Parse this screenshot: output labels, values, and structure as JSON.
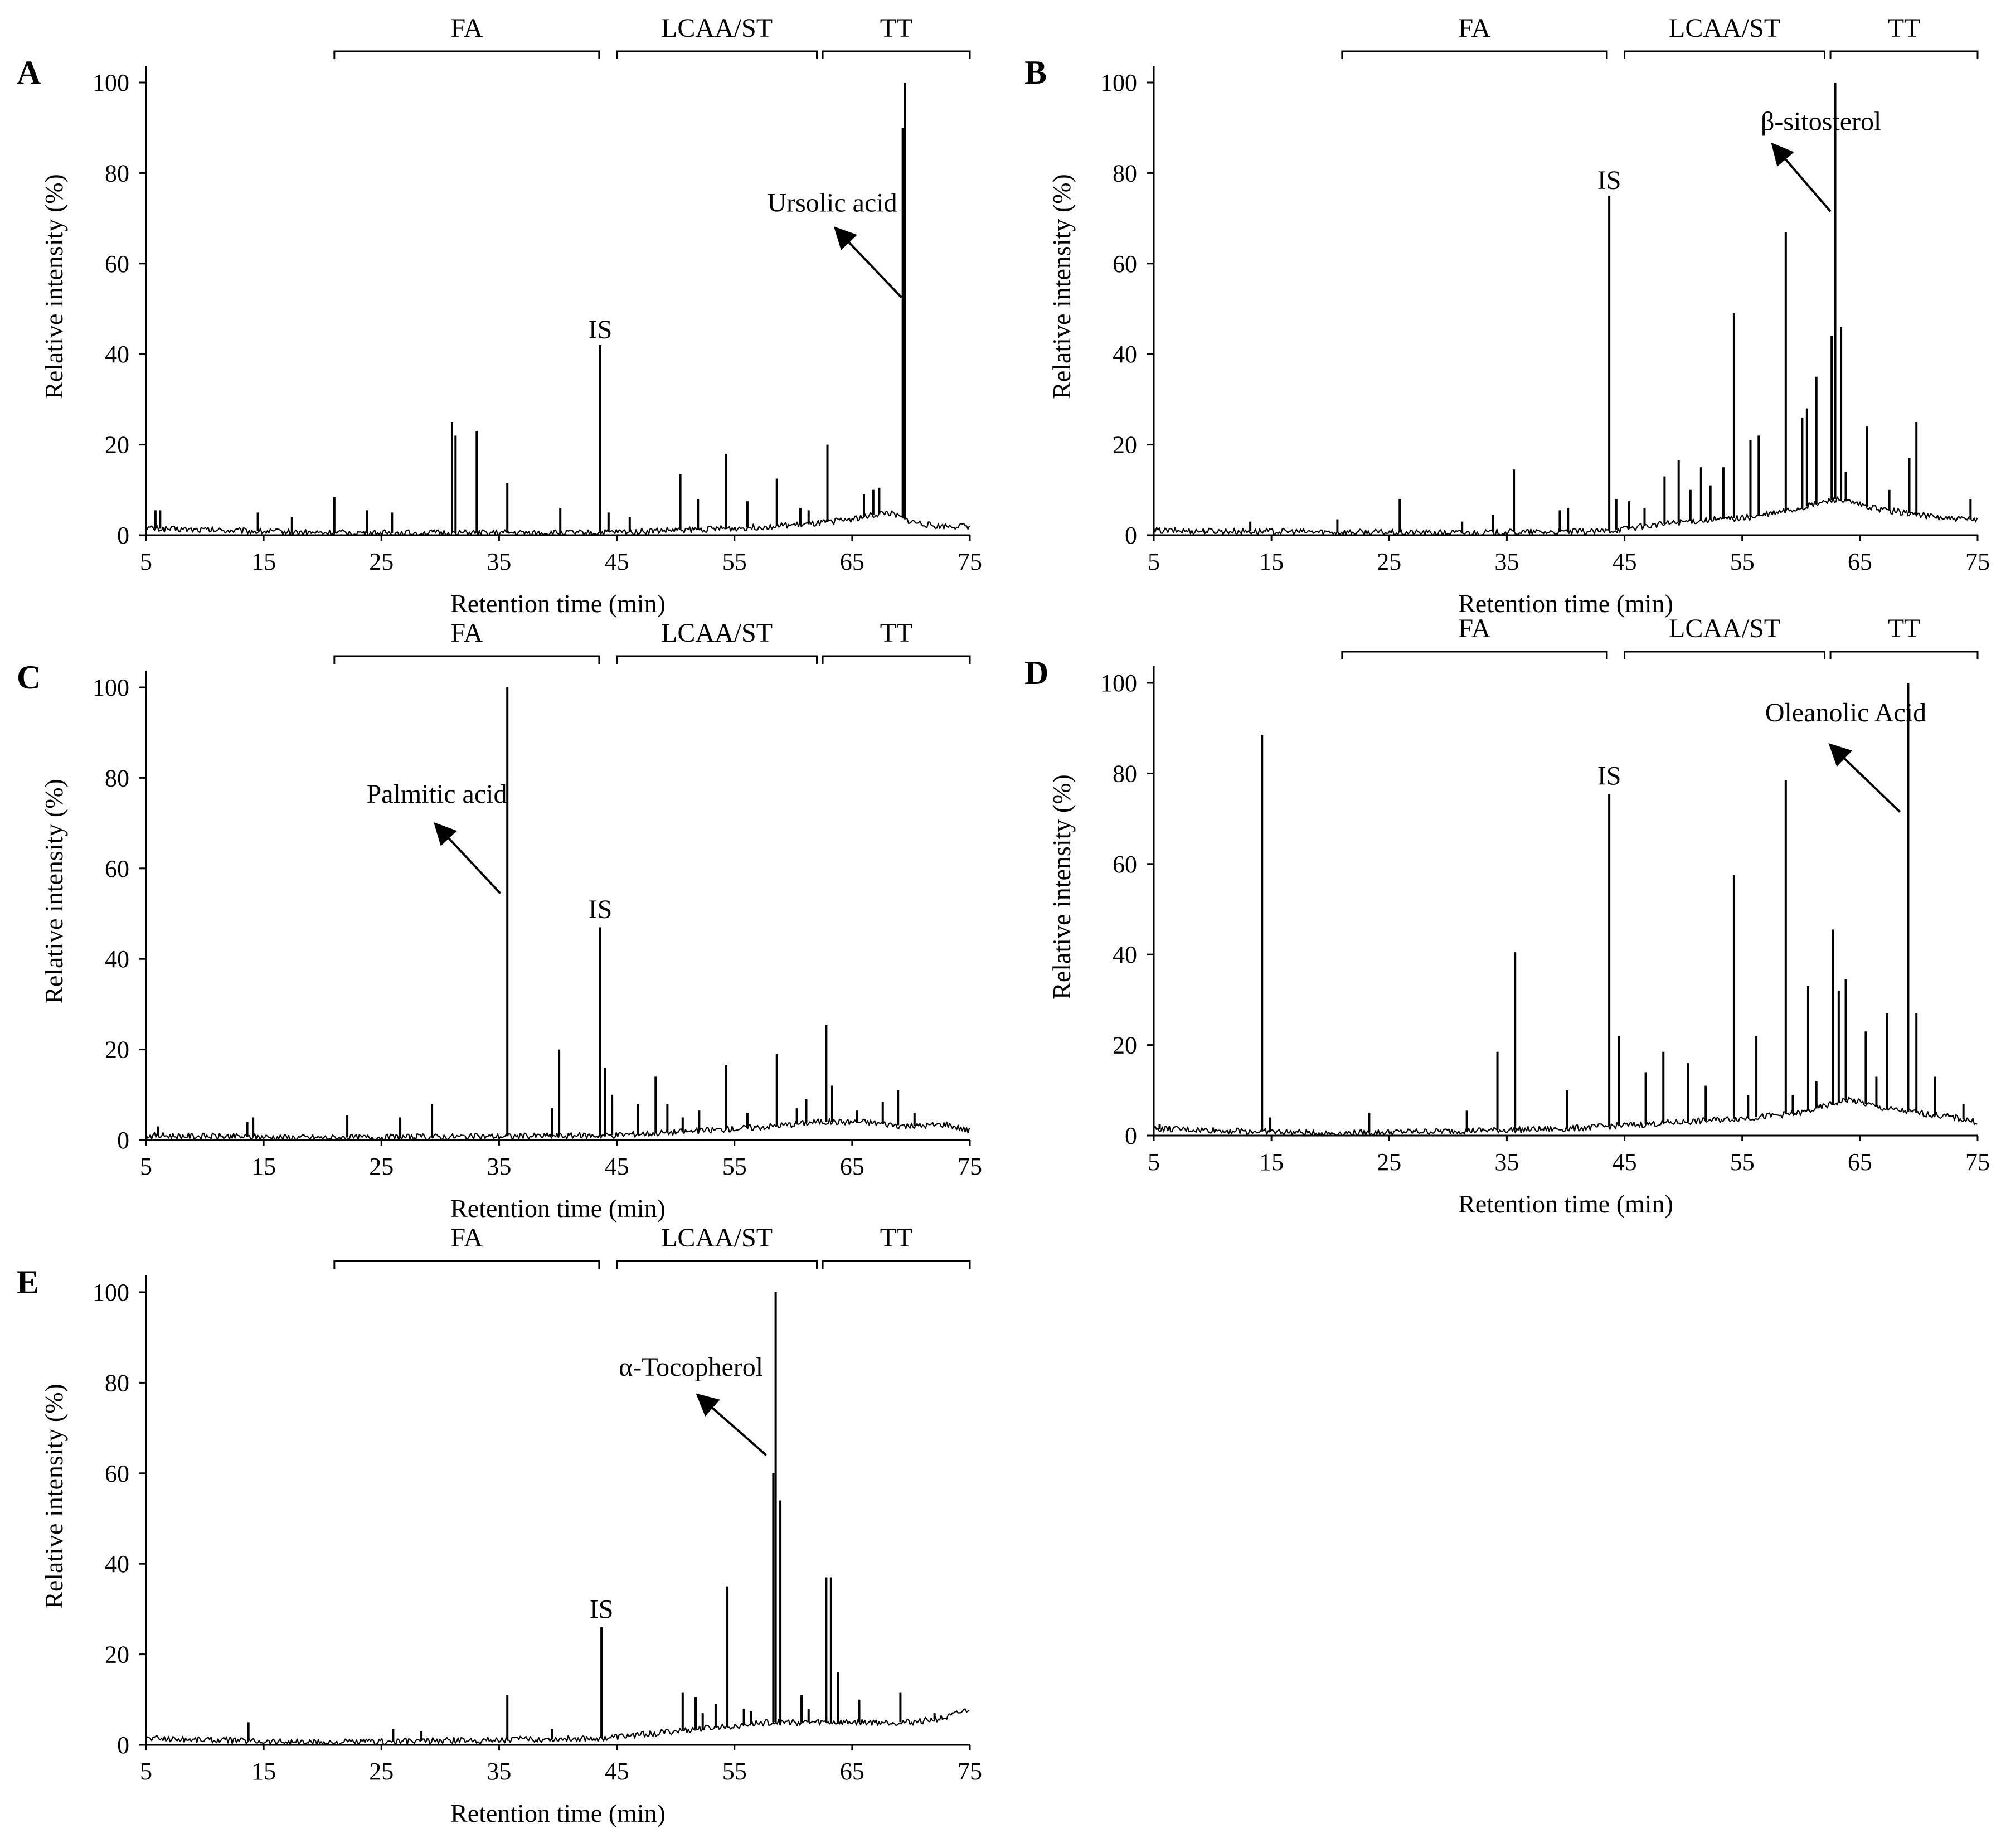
{
  "figure": {
    "x_axis_label": "Retention time (min)",
    "y_axis_label": "Relative intensity (%)"
  },
  "chart_data": [
    {
      "panel": "A",
      "type": "line",
      "xlabel": "Retention time (min)",
      "ylabel": "Relative intensity (%)",
      "xlim": [
        5,
        75
      ],
      "ylim": [
        0,
        100
      ],
      "xticks": [
        5,
        15,
        25,
        35,
        45,
        55,
        65,
        75
      ],
      "yticks": [
        0,
        20,
        40,
        60,
        80,
        100
      ],
      "brackets": [
        {
          "label": "FA",
          "start": 21,
          "end": 43.5
        },
        {
          "label": "LCAA/ST",
          "start": 45,
          "end": 62
        },
        {
          "label": "TT",
          "start": 62.5,
          "end": 75
        }
      ],
      "peaks": [
        {
          "x": 5.8,
          "y": 5.5
        },
        {
          "x": 6.2,
          "y": 5.5
        },
        {
          "x": 14.5,
          "y": 5
        },
        {
          "x": 17.4,
          "y": 4
        },
        {
          "x": 21.0,
          "y": 8.5
        },
        {
          "x": 23.8,
          "y": 5.5
        },
        {
          "x": 25.9,
          "y": 5
        },
        {
          "x": 31.0,
          "y": 25
        },
        {
          "x": 31.3,
          "y": 22
        },
        {
          "x": 33.1,
          "y": 23
        },
        {
          "x": 35.7,
          "y": 11.5
        },
        {
          "x": 40.2,
          "y": 6
        },
        {
          "x": 43.6,
          "y": 42
        },
        {
          "x": 44.3,
          "y": 5
        },
        {
          "x": 46.1,
          "y": 4
        },
        {
          "x": 50.4,
          "y": 13.5
        },
        {
          "x": 51.9,
          "y": 8
        },
        {
          "x": 54.3,
          "y": 18
        },
        {
          "x": 56.1,
          "y": 7.5
        },
        {
          "x": 58.6,
          "y": 12.5
        },
        {
          "x": 60.6,
          "y": 6
        },
        {
          "x": 61.3,
          "y": 5.5
        },
        {
          "x": 62.9,
          "y": 20
        },
        {
          "x": 66.0,
          "y": 9
        },
        {
          "x": 66.8,
          "y": 10
        },
        {
          "x": 67.3,
          "y": 10.5
        },
        {
          "x": 69.3,
          "y": 90
        },
        {
          "x": 69.5,
          "y": 100
        }
      ],
      "baseline": [
        {
          "x": 5,
          "y": 1.5
        },
        {
          "x": 20,
          "y": 0.5
        },
        {
          "x": 43,
          "y": 0.5
        },
        {
          "x": 55,
          "y": 1.5
        },
        {
          "x": 62,
          "y": 2.5
        },
        {
          "x": 66,
          "y": 4
        },
        {
          "x": 68,
          "y": 5
        },
        {
          "x": 70,
          "y": 3
        },
        {
          "x": 72,
          "y": 2
        },
        {
          "x": 75,
          "y": 2
        }
      ],
      "labels": [
        {
          "text": "IS",
          "x": 43.6,
          "y": 43.5
        }
      ],
      "annotations": [
        {
          "text": "Ursolic acid",
          "label_x": 63.3,
          "label_y": 71.5,
          "arrow_from": [
            69.2,
            52.5
          ],
          "arrow_to": [
            63.7,
            67.5
          ]
        }
      ]
    },
    {
      "panel": "B",
      "type": "line",
      "xlabel": "Retention time (min)",
      "ylabel": "Relative intensity (%)",
      "xlim": [
        5,
        75
      ],
      "ylim": [
        0,
        100
      ],
      "xticks": [
        5,
        15,
        25,
        35,
        45,
        55,
        65,
        75
      ],
      "yticks": [
        0,
        20,
        40,
        60,
        80,
        100
      ],
      "brackets": [
        {
          "label": "FA",
          "start": 21,
          "end": 43.5
        },
        {
          "label": "LCAA/ST",
          "start": 45,
          "end": 62
        },
        {
          "label": "TT",
          "start": 62.5,
          "end": 75
        }
      ],
      "peaks": [
        {
          "x": 13.2,
          "y": 3
        },
        {
          "x": 20.6,
          "y": 3.5
        },
        {
          "x": 25.9,
          "y": 8
        },
        {
          "x": 31.2,
          "y": 3
        },
        {
          "x": 33.8,
          "y": 4.5
        },
        {
          "x": 35.6,
          "y": 14.5
        },
        {
          "x": 39.5,
          "y": 5.5
        },
        {
          "x": 40.2,
          "y": 6
        },
        {
          "x": 43.7,
          "y": 75
        },
        {
          "x": 44.3,
          "y": 8
        },
        {
          "x": 45.4,
          "y": 7.5
        },
        {
          "x": 46.7,
          "y": 6
        },
        {
          "x": 48.4,
          "y": 13
        },
        {
          "x": 49.6,
          "y": 16.5
        },
        {
          "x": 50.6,
          "y": 10
        },
        {
          "x": 51.5,
          "y": 15
        },
        {
          "x": 52.3,
          "y": 11
        },
        {
          "x": 53.4,
          "y": 15
        },
        {
          "x": 54.3,
          "y": 49
        },
        {
          "x": 55.7,
          "y": 21
        },
        {
          "x": 56.4,
          "y": 22
        },
        {
          "x": 58.7,
          "y": 67
        },
        {
          "x": 60.1,
          "y": 26
        },
        {
          "x": 60.5,
          "y": 28
        },
        {
          "x": 61.3,
          "y": 35
        },
        {
          "x": 62.6,
          "y": 44
        },
        {
          "x": 62.9,
          "y": 100
        },
        {
          "x": 63.4,
          "y": 46
        },
        {
          "x": 63.8,
          "y": 14
        },
        {
          "x": 65.6,
          "y": 24
        },
        {
          "x": 67.5,
          "y": 10
        },
        {
          "x": 69.2,
          "y": 17
        },
        {
          "x": 69.8,
          "y": 25
        },
        {
          "x": 74.4,
          "y": 8
        }
      ],
      "baseline": [
        {
          "x": 5,
          "y": 1
        },
        {
          "x": 30,
          "y": 0.5
        },
        {
          "x": 43,
          "y": 0.8
        },
        {
          "x": 50,
          "y": 3
        },
        {
          "x": 56,
          "y": 4
        },
        {
          "x": 60,
          "y": 6
        },
        {
          "x": 63,
          "y": 8
        },
        {
          "x": 66,
          "y": 6
        },
        {
          "x": 70,
          "y": 4.5
        },
        {
          "x": 73,
          "y": 3.5
        },
        {
          "x": 75,
          "y": 3.5
        }
      ],
      "labels": [
        {
          "text": "IS",
          "x": 43.7,
          "y": 76.5
        }
      ],
      "annotations": [
        {
          "text": "β-sitosterol",
          "label_x": 61.7,
          "label_y": 89.5,
          "arrow_from": [
            62.5,
            71.5
          ],
          "arrow_to": [
            57.7,
            86
          ]
        }
      ]
    },
    {
      "panel": "C",
      "type": "line",
      "xlabel": "Retention time (min)",
      "ylabel": "Relative intensity (%)",
      "xlim": [
        5,
        75
      ],
      "ylim": [
        0,
        100
      ],
      "xticks": [
        5,
        15,
        25,
        35,
        45,
        55,
        65,
        75
      ],
      "yticks": [
        0,
        20,
        40,
        60,
        80,
        100
      ],
      "brackets": [
        {
          "label": "FA",
          "start": 21,
          "end": 43.5
        },
        {
          "label": "LCAA/ST",
          "start": 45,
          "end": 62
        },
        {
          "label": "TT",
          "start": 62.5,
          "end": 75
        }
      ],
      "peaks": [
        {
          "x": 6.0,
          "y": 3
        },
        {
          "x": 13.6,
          "y": 4
        },
        {
          "x": 14.1,
          "y": 5
        },
        {
          "x": 22.1,
          "y": 5.5
        },
        {
          "x": 26.6,
          "y": 5
        },
        {
          "x": 29.3,
          "y": 8
        },
        {
          "x": 35.7,
          "y": 100
        },
        {
          "x": 39.5,
          "y": 7
        },
        {
          "x": 40.1,
          "y": 20
        },
        {
          "x": 43.6,
          "y": 47
        },
        {
          "x": 44.0,
          "y": 16
        },
        {
          "x": 44.6,
          "y": 10
        },
        {
          "x": 46.8,
          "y": 8
        },
        {
          "x": 48.3,
          "y": 14
        },
        {
          "x": 49.3,
          "y": 8
        },
        {
          "x": 50.6,
          "y": 5
        },
        {
          "x": 52.0,
          "y": 6.5
        },
        {
          "x": 54.3,
          "y": 16.5
        },
        {
          "x": 56.1,
          "y": 6
        },
        {
          "x": 58.6,
          "y": 19
        },
        {
          "x": 60.3,
          "y": 7
        },
        {
          "x": 61.1,
          "y": 9
        },
        {
          "x": 62.8,
          "y": 25.5
        },
        {
          "x": 63.3,
          "y": 12
        },
        {
          "x": 65.4,
          "y": 6.5
        },
        {
          "x": 67.6,
          "y": 8.5
        },
        {
          "x": 68.9,
          "y": 11
        },
        {
          "x": 70.3,
          "y": 6
        }
      ],
      "baseline": [
        {
          "x": 5,
          "y": 1
        },
        {
          "x": 20,
          "y": 0.5
        },
        {
          "x": 44,
          "y": 1
        },
        {
          "x": 52,
          "y": 2
        },
        {
          "x": 58,
          "y": 3
        },
        {
          "x": 62,
          "y": 4
        },
        {
          "x": 66,
          "y": 4
        },
        {
          "x": 70,
          "y": 3
        },
        {
          "x": 73,
          "y": 3.5
        },
        {
          "x": 75,
          "y": 2
        }
      ],
      "labels": [
        {
          "text": "IS",
          "x": 43.6,
          "y": 49
        }
      ],
      "annotations": [
        {
          "text": "Palmitic acid",
          "label_x": 29.7,
          "label_y": 74.5,
          "arrow_from": [
            35.1,
            54.5
          ],
          "arrow_to": [
            29.7,
            69.5
          ]
        }
      ]
    },
    {
      "panel": "D",
      "type": "line",
      "xlabel": "Retention time (min)",
      "ylabel": "Relative intensity (%)",
      "xlim": [
        5,
        75
      ],
      "ylim": [
        0,
        100
      ],
      "xticks": [
        5,
        15,
        25,
        35,
        45,
        55,
        65,
        75
      ],
      "yticks": [
        0,
        20,
        40,
        60,
        80,
        100
      ],
      "brackets": [
        {
          "label": "FA",
          "start": 21,
          "end": 43.5
        },
        {
          "label": "LCAA/ST",
          "start": 45,
          "end": 62
        },
        {
          "label": "TT",
          "start": 62.5,
          "end": 75
        }
      ],
      "peaks": [
        {
          "x": 5.5,
          "y": 2.5
        },
        {
          "x": 14.2,
          "y": 88.5
        },
        {
          "x": 14.9,
          "y": 4
        },
        {
          "x": 23.3,
          "y": 5
        },
        {
          "x": 31.6,
          "y": 5.5
        },
        {
          "x": 34.2,
          "y": 18.5
        },
        {
          "x": 35.7,
          "y": 40.5
        },
        {
          "x": 40.1,
          "y": 10
        },
        {
          "x": 43.7,
          "y": 75.5
        },
        {
          "x": 44.5,
          "y": 22
        },
        {
          "x": 46.8,
          "y": 14
        },
        {
          "x": 48.3,
          "y": 18.5
        },
        {
          "x": 50.4,
          "y": 16
        },
        {
          "x": 51.9,
          "y": 11
        },
        {
          "x": 54.3,
          "y": 57.5
        },
        {
          "x": 55.5,
          "y": 9
        },
        {
          "x": 56.2,
          "y": 22
        },
        {
          "x": 58.7,
          "y": 78.5
        },
        {
          "x": 59.3,
          "y": 9
        },
        {
          "x": 60.6,
          "y": 33
        },
        {
          "x": 61.3,
          "y": 12
        },
        {
          "x": 62.7,
          "y": 45.5
        },
        {
          "x": 63.2,
          "y": 32
        },
        {
          "x": 63.8,
          "y": 34.5
        },
        {
          "x": 65.5,
          "y": 23
        },
        {
          "x": 66.4,
          "y": 13
        },
        {
          "x": 67.3,
          "y": 27
        },
        {
          "x": 69.1,
          "y": 100
        },
        {
          "x": 69.8,
          "y": 27
        },
        {
          "x": 71.4,
          "y": 13
        },
        {
          "x": 73.8,
          "y": 7
        }
      ],
      "baseline": [
        {
          "x": 5,
          "y": 1.5
        },
        {
          "x": 20,
          "y": 0.5
        },
        {
          "x": 40,
          "y": 1.5
        },
        {
          "x": 50,
          "y": 3
        },
        {
          "x": 56,
          "y": 4
        },
        {
          "x": 60,
          "y": 5
        },
        {
          "x": 64,
          "y": 8
        },
        {
          "x": 67,
          "y": 6
        },
        {
          "x": 70,
          "y": 5
        },
        {
          "x": 73,
          "y": 4
        },
        {
          "x": 75,
          "y": 3
        }
      ],
      "labels": [
        {
          "text": "IS",
          "x": 43.7,
          "y": 77.5
        }
      ],
      "annotations": [
        {
          "text": "Oleanolic Acid",
          "label_x": 63.8,
          "label_y": 91.5,
          "arrow_from": [
            68.4,
            71.5
          ],
          "arrow_to": [
            62.6,
            86
          ]
        }
      ]
    },
    {
      "panel": "E",
      "type": "line",
      "xlabel": "Retention time (min)",
      "ylabel": "Relative intensity (%)",
      "xlim": [
        5,
        75
      ],
      "ylim": [
        0,
        100
      ],
      "xticks": [
        5,
        15,
        25,
        35,
        45,
        55,
        65,
        75
      ],
      "yticks": [
        0,
        20,
        40,
        60,
        80,
        100
      ],
      "brackets": [
        {
          "label": "FA",
          "start": 21,
          "end": 43.5
        },
        {
          "label": "LCAA/ST",
          "start": 45,
          "end": 62
        },
        {
          "label": "TT",
          "start": 62.5,
          "end": 75
        }
      ],
      "peaks": [
        {
          "x": 13.7,
          "y": 5
        },
        {
          "x": 26.0,
          "y": 3.5
        },
        {
          "x": 28.4,
          "y": 3
        },
        {
          "x": 35.7,
          "y": 11
        },
        {
          "x": 39.5,
          "y": 3.5
        },
        {
          "x": 43.7,
          "y": 26
        },
        {
          "x": 50.6,
          "y": 11.5
        },
        {
          "x": 51.7,
          "y": 10.5
        },
        {
          "x": 52.3,
          "y": 7
        },
        {
          "x": 53.4,
          "y": 9
        },
        {
          "x": 54.4,
          "y": 35
        },
        {
          "x": 55.8,
          "y": 8
        },
        {
          "x": 56.4,
          "y": 7.5
        },
        {
          "x": 58.3,
          "y": 60
        },
        {
          "x": 58.5,
          "y": 100
        },
        {
          "x": 58.9,
          "y": 54
        },
        {
          "x": 60.7,
          "y": 11
        },
        {
          "x": 61.3,
          "y": 8
        },
        {
          "x": 62.8,
          "y": 37
        },
        {
          "x": 63.2,
          "y": 37
        },
        {
          "x": 63.8,
          "y": 16
        },
        {
          "x": 65.6,
          "y": 10
        },
        {
          "x": 69.1,
          "y": 11.5
        },
        {
          "x": 72.0,
          "y": 7
        }
      ],
      "baseline": [
        {
          "x": 5,
          "y": 1.5
        },
        {
          "x": 20,
          "y": 0.5
        },
        {
          "x": 44,
          "y": 1.5
        },
        {
          "x": 52,
          "y": 3.5
        },
        {
          "x": 58,
          "y": 5
        },
        {
          "x": 62,
          "y": 5
        },
        {
          "x": 66,
          "y": 5
        },
        {
          "x": 70,
          "y": 5
        },
        {
          "x": 73,
          "y": 6
        },
        {
          "x": 75,
          "y": 8
        }
      ],
      "labels": [
        {
          "text": "IS",
          "x": 43.7,
          "y": 28
        }
      ],
      "annotations": [
        {
          "text": "α-Tocopherol",
          "label_x": 51.3,
          "label_y": 81.5,
          "arrow_from": [
            57.7,
            64
          ],
          "arrow_to": [
            52.0,
            77
          ]
        }
      ]
    }
  ]
}
